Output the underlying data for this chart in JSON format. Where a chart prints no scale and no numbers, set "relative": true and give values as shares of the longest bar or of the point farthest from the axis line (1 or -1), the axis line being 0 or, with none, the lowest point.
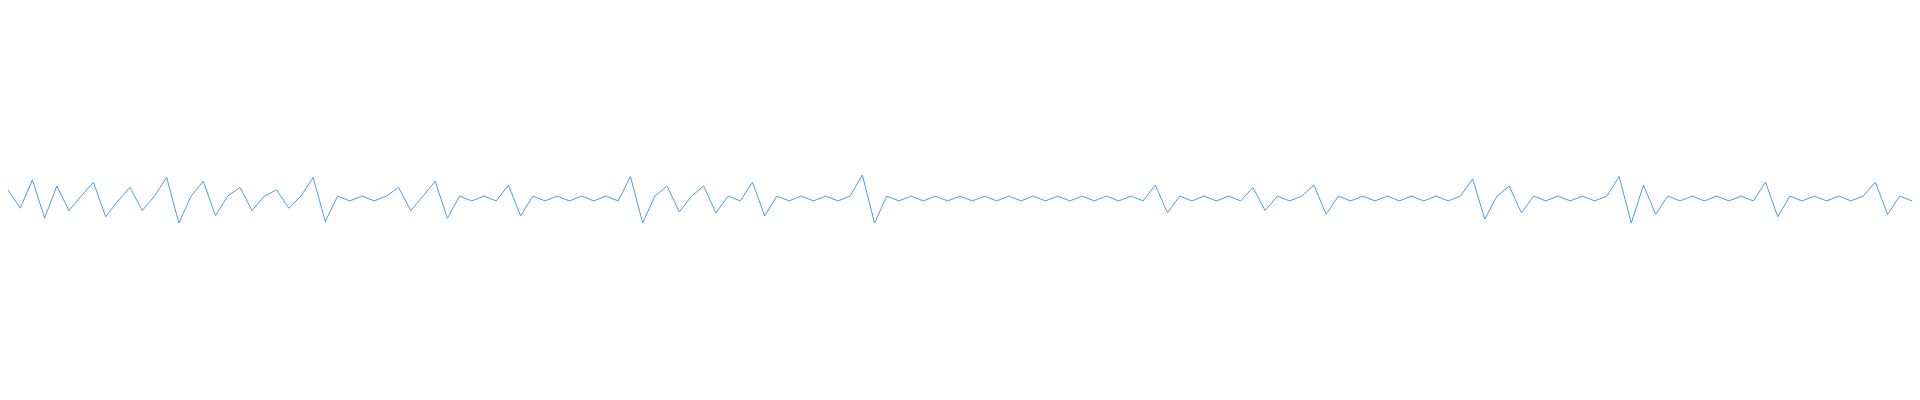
{
  "chart_data": {
    "type": "line",
    "relative": true,
    "grid": false,
    "legend": false,
    "marker": "none",
    "line_style": "solid",
    "categories": [
      null,
      null,
      null,
      null,
      null,
      null,
      null,
      null,
      null,
      null,
      null,
      null,
      null,
      null,
      null,
      null,
      null,
      null,
      null,
      null,
      null,
      null,
      null,
      null,
      null,
      null,
      null,
      null,
      null,
      null,
      null,
      null,
      null,
      null,
      null,
      null,
      null,
      null,
      null,
      null,
      null,
      null,
      null,
      null,
      null,
      null,
      null,
      null,
      null,
      null,
      null,
      null,
      null,
      null,
      null,
      null,
      null,
      null,
      null,
      null,
      null,
      null,
      null,
      null,
      null,
      null,
      null,
      null,
      null,
      null,
      null,
      null,
      null,
      null,
      null,
      null,
      null,
      null,
      null,
      null,
      null,
      null,
      null,
      null,
      null,
      null,
      null,
      null,
      null,
      null,
      null,
      null,
      null,
      null,
      null,
      null,
      null,
      null,
      null,
      null,
      null,
      null,
      null,
      null,
      null,
      null,
      null,
      null,
      null,
      null,
      null,
      null,
      null,
      null,
      null,
      null,
      null,
      null,
      null,
      null,
      null,
      null,
      null,
      null,
      null,
      null,
      null,
      null,
      null,
      null,
      null,
      null,
      null,
      null,
      null,
      null,
      null,
      null,
      null,
      null,
      null,
      null,
      null,
      null,
      null,
      null,
      null,
      null,
      null,
      null,
      null,
      null,
      null,
      null,
      null,
      null,
      null
    ],
    "series": [
      {
        "color": "#4a9fdc",
        "values": [
          0.69,
          0.31,
          0.9,
          0.1,
          0.77,
          0.26,
          0.56,
          0.85,
          0.13,
          0.46,
          0.74,
          0.26,
          0.56,
          0.95,
          0,
          0.56,
          0.87,
          0.15,
          0.56,
          0.74,
          0.26,
          0.56,
          0.69,
          0.31,
          0.56,
          0.95,
          0.03,
          0.56,
          0.46,
          0.56,
          0.46,
          0.56,
          0.74,
          0.26,
          0.56,
          0.87,
          0.1,
          0.56,
          0.46,
          0.56,
          0.46,
          0.79,
          0.15,
          0.56,
          0.46,
          0.56,
          0.46,
          0.56,
          0.46,
          0.56,
          0.46,
          0.97,
          0,
          0.56,
          0.77,
          0.23,
          0.56,
          0.77,
          0.21,
          0.56,
          0.46,
          0.85,
          0.15,
          0.56,
          0.46,
          0.56,
          0.46,
          0.56,
          0.46,
          0.56,
          1,
          0,
          0.56,
          0.46,
          0.56,
          0.46,
          0.56,
          0.46,
          0.56,
          0.46,
          0.56,
          0.46,
          0.56,
          0.46,
          0.56,
          0.46,
          0.56,
          0.46,
          0.56,
          0.46,
          0.56,
          0.46,
          0.56,
          0.46,
          0.79,
          0.21,
          0.56,
          0.46,
          0.56,
          0.46,
          0.56,
          0.46,
          0.74,
          0.26,
          0.56,
          0.46,
          0.56,
          0.79,
          0.18,
          0.56,
          0.46,
          0.56,
          0.46,
          0.56,
          0.46,
          0.56,
          0.46,
          0.56,
          0.46,
          0.56,
          0.92,
          0.08,
          0.56,
          0.77,
          0.21,
          0.56,
          0.46,
          0.56,
          0.46,
          0.56,
          0.46,
          0.56,
          0.97,
          0,
          0.79,
          0.18,
          0.56,
          0.46,
          0.56,
          0.46,
          0.56,
          0.46,
          0.56,
          0.46,
          0.85,
          0.13,
          0.56,
          0.46,
          0.56,
          0.46,
          0.56,
          0.46,
          0.56,
          0.85,
          0.18,
          0.56,
          0.46
        ]
      }
    ]
  }
}
